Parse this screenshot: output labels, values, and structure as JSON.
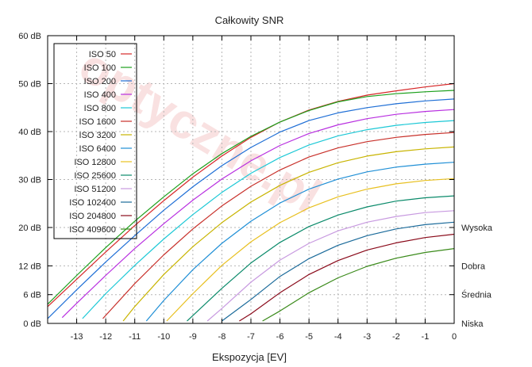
{
  "chart_data": {
    "type": "line",
    "title": "Całkowity SNR",
    "xlabel": "Ekspozycja [EV]",
    "ylabel": "",
    "xlim": [
      -14,
      0
    ],
    "ylim": [
      0,
      60
    ],
    "x_ticks": [
      -13,
      -12,
      -11,
      -10,
      -9,
      -8,
      -7,
      -6,
      -5,
      -4,
      -3,
      -2,
      -1,
      0
    ],
    "y_ticks": [
      {
        "value": 0,
        "label": "0 dB"
      },
      {
        "value": 6,
        "label": "6 dB"
      },
      {
        "value": 12,
        "label": "12 dB"
      },
      {
        "value": 20,
        "label": "20 dB"
      },
      {
        "value": 30,
        "label": "30 dB"
      },
      {
        "value": 40,
        "label": "40 dB"
      },
      {
        "value": 50,
        "label": "50 dB"
      },
      {
        "value": 60,
        "label": "60 dB"
      }
    ],
    "right_labels": [
      {
        "value": 20,
        "label": "Wysoka"
      },
      {
        "value": 12,
        "label": "Dobra"
      },
      {
        "value": 6,
        "label": "Średnia"
      },
      {
        "value": 0,
        "label": "Niska"
      }
    ],
    "grid": true,
    "legend_position": "top-left",
    "watermark": "optyczne.pl",
    "series": [
      {
        "name": "ISO 50",
        "color": "#d62728",
        "x": [
          -14,
          -13,
          -12,
          -11,
          -10,
          -9,
          -8,
          -7,
          -6,
          -5,
          -4,
          -3,
          -2,
          -1,
          0
        ],
        "y": [
          3.5,
          9.2,
          14.9,
          20.4,
          25.6,
          30.5,
          34.9,
          38.8,
          42.0,
          44.5,
          46.3,
          47.6,
          48.5,
          49.3,
          50.0
        ]
      },
      {
        "name": "ISO 100",
        "color": "#1ca01c",
        "x": [
          -14,
          -13,
          -12,
          -11,
          -10,
          -9,
          -8,
          -7,
          -6,
          -5,
          -4,
          -3,
          -2,
          -1,
          0
        ],
        "y": [
          4.0,
          10.0,
          15.8,
          21.3,
          26.4,
          31.2,
          35.4,
          39.0,
          42.0,
          44.4,
          46.2,
          47.3,
          47.9,
          48.3,
          48.6
        ]
      },
      {
        "name": "ISO 200",
        "color": "#1f6fd6",
        "x": [
          -14,
          -13.5,
          -13,
          -12,
          -11,
          -10,
          -9,
          -8,
          -7,
          -6,
          -5,
          -4,
          -3,
          -2,
          -1,
          0
        ],
        "y": [
          1.0,
          4.0,
          7.0,
          12.8,
          18.3,
          23.6,
          28.5,
          32.9,
          36.7,
          39.9,
          42.3,
          43.9,
          45.0,
          45.8,
          46.4,
          46.8
        ]
      },
      {
        "name": "ISO 400",
        "color": "#b82ee0",
        "x": [
          -13.5,
          -13,
          -12,
          -11,
          -10,
          -9,
          -8,
          -7,
          -6,
          -5,
          -4,
          -3,
          -2,
          -1,
          0
        ],
        "y": [
          1.2,
          4.2,
          10.0,
          15.6,
          20.8,
          25.7,
          30.1,
          33.9,
          37.1,
          39.6,
          41.4,
          42.7,
          43.6,
          44.2,
          44.6
        ]
      },
      {
        "name": "ISO 800",
        "color": "#1cc8d6",
        "x": [
          -12.8,
          -12,
          -11,
          -10,
          -9,
          -8,
          -7,
          -6,
          -5,
          -4,
          -3,
          -2,
          -1,
          0
        ],
        "y": [
          1.0,
          6.2,
          12.1,
          17.6,
          22.7,
          27.3,
          31.3,
          34.6,
          37.2,
          39.1,
          40.4,
          41.3,
          41.9,
          42.3
        ]
      },
      {
        "name": "ISO 1600",
        "color": "#c8302a",
        "x": [
          -12.1,
          -11,
          -10,
          -9,
          -8,
          -7,
          -6,
          -5,
          -4,
          -3,
          -2,
          -1,
          0
        ],
        "y": [
          1.0,
          8.3,
          14.3,
          19.7,
          24.5,
          28.6,
          32.0,
          34.7,
          36.6,
          37.9,
          38.8,
          39.4,
          39.8
        ]
      },
      {
        "name": "ISO 1600",
        "color": "#e23030",
        "x": [],
        "y": []
      },
      {
        "name": "ISO 3200",
        "color": "#c8b400",
        "x": [
          -11.4,
          -11,
          -10,
          -9,
          -8,
          -7,
          -6,
          -5,
          -4,
          -3,
          -2,
          -1,
          0
        ],
        "y": [
          0.5,
          3.5,
          10.2,
          16.0,
          21.0,
          25.3,
          28.8,
          31.5,
          33.5,
          34.9,
          35.8,
          36.4,
          36.8
        ]
      },
      {
        "name": "ISO 6400",
        "color": "#1f8fd6",
        "x": [
          -10.6,
          -10,
          -9,
          -8,
          -7,
          -6,
          -5,
          -4,
          -3,
          -2,
          -1,
          0
        ],
        "y": [
          0.5,
          4.8,
          11.2,
          16.7,
          21.3,
          25.1,
          28.0,
          30.1,
          31.6,
          32.6,
          33.2,
          33.6
        ]
      },
      {
        "name": "ISO 12800",
        "color": "#e8c020",
        "x": [
          -9.9,
          -9,
          -8,
          -7,
          -6,
          -5,
          -4,
          -3,
          -2,
          -1,
          0
        ],
        "y": [
          0.5,
          6.2,
          12.1,
          17.0,
          21.0,
          24.1,
          26.4,
          28.0,
          29.1,
          29.8,
          30.2
        ]
      },
      {
        "name": "ISO 25600",
        "color": "#0a8a6a",
        "x": [
          -9.2,
          -8,
          -7,
          -6,
          -5,
          -4,
          -3,
          -2,
          -1,
          0
        ],
        "y": [
          0.5,
          7.3,
          12.6,
          16.9,
          20.2,
          22.6,
          24.3,
          25.5,
          26.2,
          26.6
        ]
      },
      {
        "name": "ISO 51200",
        "color": "#c89ae0",
        "x": [
          -8.5,
          -8,
          -7,
          -6,
          -5,
          -4,
          -3,
          -2,
          -1,
          0
        ],
        "y": [
          0.5,
          3.1,
          8.6,
          13.2,
          16.7,
          19.3,
          21.1,
          22.3,
          23.1,
          23.5
        ]
      },
      {
        "name": "ISO 102400",
        "color": "#1a6a9a",
        "x": [
          -8.0,
          -7,
          -6,
          -5,
          -4,
          -3,
          -2,
          -1,
          0
        ],
        "y": [
          0.5,
          5.0,
          9.8,
          13.5,
          16.3,
          18.3,
          19.7,
          20.6,
          21.1
        ]
      },
      {
        "name": "ISO 204800",
        "color": "#8a0a1a",
        "x": [
          -7.4,
          -7,
          -6,
          -5,
          -4,
          -3,
          -2,
          -1,
          0
        ],
        "y": [
          0.5,
          2.0,
          6.4,
          10.2,
          13.1,
          15.3,
          16.8,
          17.9,
          18.6
        ]
      },
      {
        "name": "ISO 409600",
        "color": "#3a8a1a",
        "x": [
          -6.6,
          -6,
          -5,
          -4,
          -3,
          -2,
          -1,
          0
        ],
        "y": [
          0.5,
          2.6,
          6.4,
          9.5,
          11.9,
          13.6,
          14.8,
          15.6
        ]
      }
    ]
  }
}
